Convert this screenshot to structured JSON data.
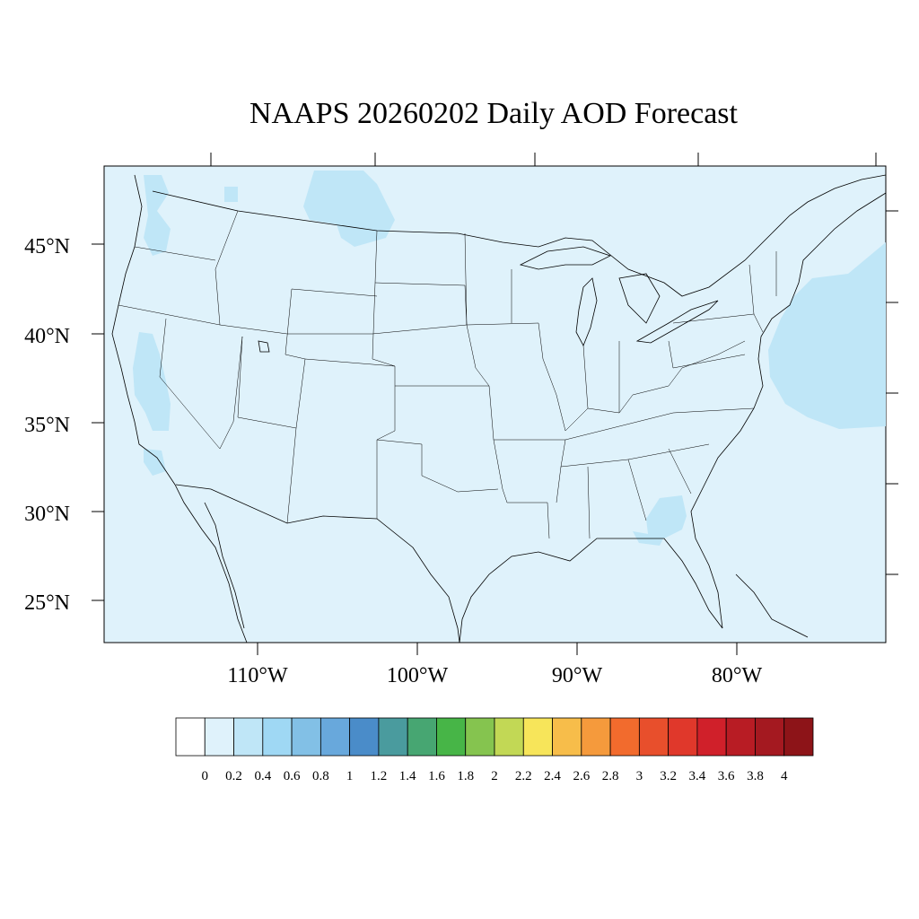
{
  "title": "NAAPS 20260202 Daily AOD Forecast",
  "lat_labels": [
    "45°N",
    "40°N",
    "35°N",
    "30°N",
    "25°N"
  ],
  "lon_labels": [
    "110°W",
    "100°W",
    "90°W",
    "80°W"
  ],
  "colorbar": {
    "labels": [
      "0",
      "0.2",
      "0.4",
      "0.6",
      "0.8",
      "1",
      "1.2",
      "1.4",
      "1.6",
      "1.8",
      "2",
      "2.2",
      "2.4",
      "2.6",
      "2.8",
      "3",
      "3.2",
      "3.4",
      "3.6",
      "3.8",
      "4"
    ],
    "colors": [
      "#ffffff",
      "#dff2fb",
      "#bfe6f7",
      "#9fd8f4",
      "#82c0e6",
      "#68a8dc",
      "#4a8cc9",
      "#4a9b9e",
      "#47a672",
      "#47b547",
      "#85c44f",
      "#c2d855",
      "#f7e55a",
      "#f7bd4a",
      "#f59a3c",
      "#f26b2d",
      "#e84f2c",
      "#e0382b",
      "#d0202a",
      "#b81c24",
      "#a41920",
      "#8d1418"
    ]
  },
  "map_colors": {
    "background": "#dff2fb",
    "aod_0_4_0_6": "#bfe6f7",
    "boundary": "#000000"
  }
}
